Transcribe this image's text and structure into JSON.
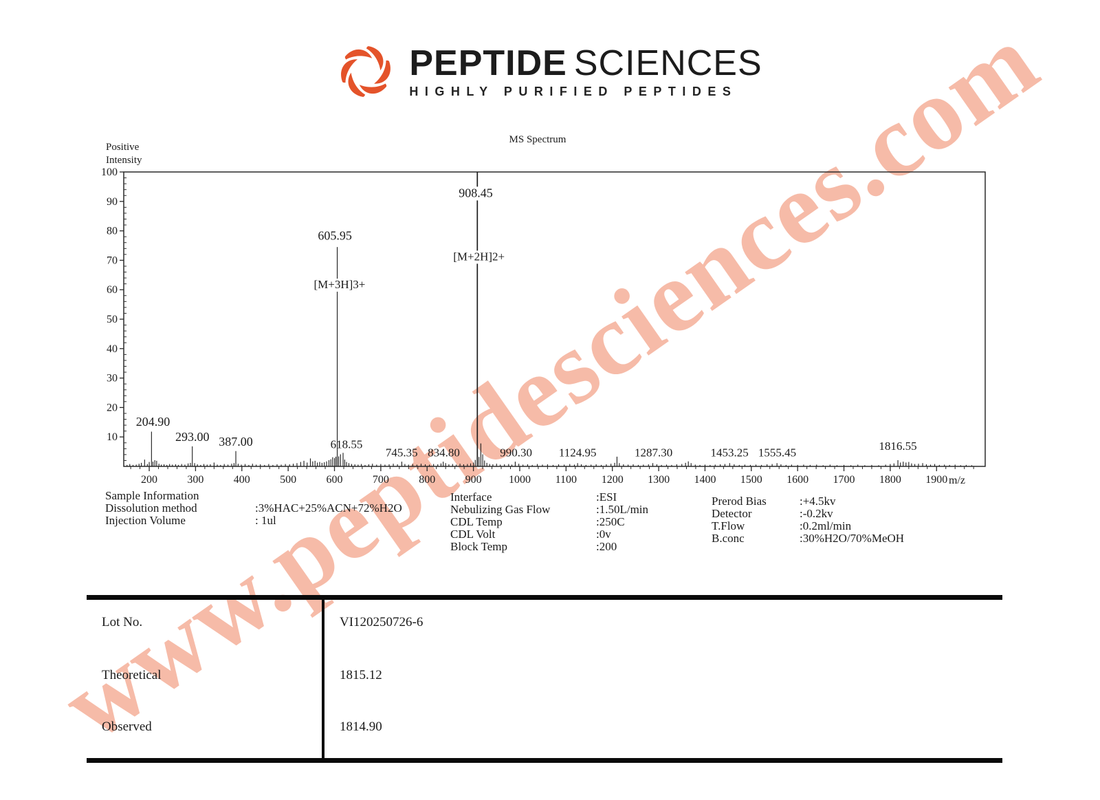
{
  "header": {
    "brand_bold": "PEPTIDE",
    "brand_light": "SCIENCES",
    "tagline": "HIGHLY PURIFIED PEPTIDES",
    "logo_color": "#E4532A"
  },
  "watermark": {
    "text": "www.peptidesciences.com",
    "color": "rgba(237,119,82,0.5)"
  },
  "chart_data": {
    "type": "line",
    "subtype": "mass-spectrum-stick-plot",
    "title": "MS Spectrum",
    "ylabel_lines": [
      "Positive",
      "Intensity"
    ],
    "xlabel": "m/z",
    "xlim": [
      145,
      2005
    ],
    "ylim": [
      0,
      100
    ],
    "x_ticks": [
      200,
      300,
      400,
      500,
      600,
      700,
      800,
      900,
      1000,
      1100,
      1200,
      1300,
      1400,
      1500,
      1600,
      1700,
      1800,
      1900
    ],
    "y_ticks": [
      10,
      20,
      30,
      40,
      50,
      60,
      70,
      80,
      90,
      100
    ],
    "grid": false,
    "peaks": [
      [
        152,
        0.5
      ],
      [
        158,
        0.8
      ],
      [
        165,
        0.5
      ],
      [
        172,
        0.6
      ],
      [
        178,
        0.9
      ],
      [
        183,
        1.2
      ],
      [
        190,
        2.3
      ],
      [
        196,
        0.8
      ],
      [
        200,
        1.5
      ],
      [
        204.9,
        11.8
      ],
      [
        208,
        1.6
      ],
      [
        212,
        2.1
      ],
      [
        216,
        1.9
      ],
      [
        221,
        0.9
      ],
      [
        226,
        0.6
      ],
      [
        232,
        0.7
      ],
      [
        238,
        0.5
      ],
      [
        244,
        0.8
      ],
      [
        250,
        0.6
      ],
      [
        257,
        0.7
      ],
      [
        263,
        0.5
      ],
      [
        270,
        0.8
      ],
      [
        277,
        0.6
      ],
      [
        284,
        1.0
      ],
      [
        289,
        1.2
      ],
      [
        293,
        6.8
      ],
      [
        298,
        1.1
      ],
      [
        304,
        0.7
      ],
      [
        311,
        0.5
      ],
      [
        318,
        0.8
      ],
      [
        325,
        0.6
      ],
      [
        332,
        0.7
      ],
      [
        340,
        1.3
      ],
      [
        347,
        0.6
      ],
      [
        354,
        0.5
      ],
      [
        362,
        0.8
      ],
      [
        370,
        0.6
      ],
      [
        378,
        0.9
      ],
      [
        383,
        1.1
      ],
      [
        387,
        5.2
      ],
      [
        392,
        0.9
      ],
      [
        399,
        0.6
      ],
      [
        407,
        0.8
      ],
      [
        415,
        0.5
      ],
      [
        423,
        0.9
      ],
      [
        431,
        0.6
      ],
      [
        440,
        0.7
      ],
      [
        449,
        0.5
      ],
      [
        458,
        0.8
      ],
      [
        467,
        0.5
      ],
      [
        476,
        0.7
      ],
      [
        485,
        0.6
      ],
      [
        494,
        0.8
      ],
      [
        503,
        0.7
      ],
      [
        511,
        0.9
      ],
      [
        519,
        1.1
      ],
      [
        527,
        1.5
      ],
      [
        534,
        1.9
      ],
      [
        541,
        1.3
      ],
      [
        548,
        2.7
      ],
      [
        553,
        1.7
      ],
      [
        558,
        1.9
      ],
      [
        563,
        1.3
      ],
      [
        568,
        1.5
      ],
      [
        573,
        1.2
      ],
      [
        578,
        1.4
      ],
      [
        583,
        1.7
      ],
      [
        588,
        2.1
      ],
      [
        592,
        2.4
      ],
      [
        596,
        3.1
      ],
      [
        600,
        2.8
      ],
      [
        603,
        3.3
      ],
      [
        605.95,
        74.5
      ],
      [
        609,
        3.4
      ],
      [
        613,
        4.1
      ],
      [
        618.55,
        4.6
      ],
      [
        622,
        2.3
      ],
      [
        626,
        1.5
      ],
      [
        631,
        1.1
      ],
      [
        637,
        0.8
      ],
      [
        644,
        0.7
      ],
      [
        651,
        0.6
      ],
      [
        658,
        0.8
      ],
      [
        666,
        0.5
      ],
      [
        674,
        0.7
      ],
      [
        682,
        0.9
      ],
      [
        691,
        0.6
      ],
      [
        700,
        0.8
      ],
      [
        709,
        0.6
      ],
      [
        718,
        0.7
      ],
      [
        727,
        0.9
      ],
      [
        736,
        0.7
      ],
      [
        745.35,
        1.6
      ],
      [
        752,
        0.8
      ],
      [
        760,
        0.6
      ],
      [
        769,
        0.8
      ],
      [
        778,
        0.6
      ],
      [
        787,
        0.9
      ],
      [
        796,
        0.7
      ],
      [
        805,
        0.6
      ],
      [
        814,
        0.8
      ],
      [
        823,
        0.7
      ],
      [
        830,
        1.0
      ],
      [
        834.8,
        1.6
      ],
      [
        840,
        1.1
      ],
      [
        847,
        0.7
      ],
      [
        855,
        0.8
      ],
      [
        863,
        0.6
      ],
      [
        871,
        0.9
      ],
      [
        879,
        0.7
      ],
      [
        887,
        0.8
      ],
      [
        894,
        1.0
      ],
      [
        900,
        1.3
      ],
      [
        904,
        2.2
      ],
      [
        908.45,
        100
      ],
      [
        912,
        3.2
      ],
      [
        916,
        7.8
      ],
      [
        920,
        4.1
      ],
      [
        924,
        2.0
      ],
      [
        929,
        1.2
      ],
      [
        935,
        0.8
      ],
      [
        942,
        0.7
      ],
      [
        950,
        0.9
      ],
      [
        958,
        0.6
      ],
      [
        967,
        0.7
      ],
      [
        976,
        0.8
      ],
      [
        983,
        0.6
      ],
      [
        990.3,
        1.6
      ],
      [
        998,
        0.9
      ],
      [
        1007,
        0.6
      ],
      [
        1017,
        0.7
      ],
      [
        1027,
        0.5
      ],
      [
        1038,
        0.8
      ],
      [
        1049,
        0.6
      ],
      [
        1060,
        0.7
      ],
      [
        1072,
        0.5
      ],
      [
        1084,
        0.7
      ],
      [
        1096,
        0.6
      ],
      [
        1108,
        0.8
      ],
      [
        1118,
        0.6
      ],
      [
        1124.95,
        1.1
      ],
      [
        1133,
        0.7
      ],
      [
        1143,
        0.5
      ],
      [
        1154,
        0.6
      ],
      [
        1165,
        0.7
      ],
      [
        1176,
        0.5
      ],
      [
        1187,
        0.7
      ],
      [
        1197,
        0.9
      ],
      [
        1205,
        1.2
      ],
      [
        1210,
        3.3
      ],
      [
        1215,
        1.1
      ],
      [
        1224,
        0.7
      ],
      [
        1234,
        0.6
      ],
      [
        1245,
        0.7
      ],
      [
        1256,
        0.5
      ],
      [
        1267,
        0.6
      ],
      [
        1278,
        0.7
      ],
      [
        1287.3,
        1.1
      ],
      [
        1296,
        0.7
      ],
      [
        1306,
        0.5
      ],
      [
        1317,
        0.6
      ],
      [
        1328,
        0.5
      ],
      [
        1339,
        0.7
      ],
      [
        1350,
        0.8
      ],
      [
        1358,
        1.2
      ],
      [
        1364,
        1.7
      ],
      [
        1370,
        1.1
      ],
      [
        1379,
        0.6
      ],
      [
        1389,
        0.5
      ],
      [
        1400,
        0.6
      ],
      [
        1411,
        0.5
      ],
      [
        1422,
        0.6
      ],
      [
        1433,
        0.7
      ],
      [
        1443,
        0.8
      ],
      [
        1453.25,
        1.1
      ],
      [
        1463,
        0.7
      ],
      [
        1474,
        0.5
      ],
      [
        1486,
        0.6
      ],
      [
        1498,
        0.5
      ],
      [
        1510,
        0.6
      ],
      [
        1522,
        0.5
      ],
      [
        1534,
        0.7
      ],
      [
        1545,
        0.8
      ],
      [
        1555.45,
        1.1
      ],
      [
        1564,
        0.7
      ],
      [
        1575,
        0.5
      ],
      [
        1587,
        0.6
      ],
      [
        1600,
        0.5
      ],
      [
        1613,
        0.6
      ],
      [
        1627,
        0.5
      ],
      [
        1641,
        0.6
      ],
      [
        1655,
        0.4
      ],
      [
        1670,
        0.6
      ],
      [
        1685,
        0.4
      ],
      [
        1700,
        0.5
      ],
      [
        1715,
        0.4
      ],
      [
        1730,
        0.6
      ],
      [
        1745,
        0.4
      ],
      [
        1760,
        0.5
      ],
      [
        1775,
        0.4
      ],
      [
        1790,
        0.6
      ],
      [
        1800,
        0.8
      ],
      [
        1808,
        1.0
      ],
      [
        1816.55,
        2.1
      ],
      [
        1822,
        1.3
      ],
      [
        1828,
        1.6
      ],
      [
        1834,
        1.3
      ],
      [
        1840,
        1.5
      ],
      [
        1846,
        1.0
      ],
      [
        1853,
        0.8
      ],
      [
        1861,
        0.9
      ],
      [
        1870,
        1.1
      ],
      [
        1878,
        0.7
      ],
      [
        1887,
        0.6
      ],
      [
        1896,
        0.8
      ],
      [
        1906,
        0.5
      ],
      [
        1917,
        0.6
      ],
      [
        1928,
        0.5
      ],
      [
        1940,
        0.6
      ],
      [
        1952,
        0.4
      ],
      [
        1964,
        0.5
      ],
      [
        1976,
        0.4
      ]
    ],
    "peak_labels": [
      {
        "text": "204.90",
        "mz": 208,
        "ly": 13.8,
        "big": true
      },
      {
        "text": "293.00",
        "mz": 293,
        "ly": 8.6,
        "big": true
      },
      {
        "text": "387.00",
        "mz": 387,
        "ly": 7.0,
        "big": true
      },
      {
        "text": "605.95",
        "mz": 601,
        "ly": 77.0,
        "big": true,
        "bg": true
      },
      {
        "text": "618.55",
        "mz": 626,
        "ly": 6.2
      },
      {
        "text": "745.35",
        "mz": 745,
        "ly": 3.4
      },
      {
        "text": "834.80",
        "mz": 836,
        "ly": 3.4
      },
      {
        "text": "908.45",
        "mz": 905,
        "ly": 91.5,
        "big": true,
        "bg": true
      },
      {
        "text": "990.30",
        "mz": 992,
        "ly": 3.4
      },
      {
        "text": "1124.95",
        "mz": 1125,
        "ly": 3.4
      },
      {
        "text": "1287.30",
        "mz": 1289,
        "ly": 3.4
      },
      {
        "text": "1453.25",
        "mz": 1453,
        "ly": 3.4
      },
      {
        "text": "1555.45",
        "mz": 1556,
        "ly": 3.4
      },
      {
        "text": "1816.55",
        "mz": 1816.5,
        "ly": 5.6
      }
    ],
    "annotations": [
      {
        "text": "[M+3H]3+",
        "mz": 611,
        "ly": 60.5,
        "bg": true
      },
      {
        "text": "[M+2H]2+",
        "mz": 912,
        "ly": 70.0,
        "bg": true
      }
    ]
  },
  "params": {
    "col1": {
      "rows": [
        {
          "label": "Sample Information",
          "value": ""
        },
        {
          "label": "Dissolution method",
          "value": ":3%HAC+25%ACN+72%H2O"
        },
        {
          "label": "Injection Volume",
          "value": ": 1ul"
        }
      ]
    },
    "col2": {
      "rows": [
        {
          "label": "Interface",
          "value": ":ESI"
        },
        {
          "label": "Nebulizing Gas Flow",
          "value": ":1.50L/min"
        },
        {
          "label": "CDL Temp",
          "value": ":250C"
        },
        {
          "label": "CDL Volt",
          "value": ":0v"
        },
        {
          "label": "Block Temp",
          "value": ":200"
        }
      ]
    },
    "col3": {
      "rows": [
        {
          "label": "Prerod Bias",
          "value": ":+4.5kv"
        },
        {
          "label": "Detector",
          "value": ":-0.2kv"
        },
        {
          "label": "T.Flow",
          "value": ":0.2ml/min"
        },
        {
          "label": "B.conc",
          "value": ":30%H2O/70%MeOH"
        }
      ]
    }
  },
  "results_table": {
    "rows": [
      {
        "label": "Lot No.",
        "value": "VI120250726-6"
      },
      {
        "label": "Theoretical",
        "value": "1815.12"
      },
      {
        "label": "Observed",
        "value": "1814.90"
      }
    ]
  }
}
